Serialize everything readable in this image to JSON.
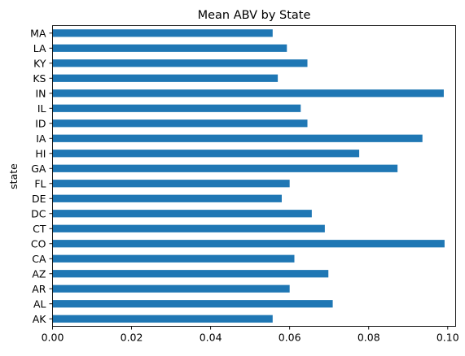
{
  "chart_data": {
    "type": "bar",
    "orientation": "horizontal",
    "title": "Mean ABV by State",
    "xlabel": "",
    "ylabel": "state",
    "xlim": [
      0,
      0.102
    ],
    "x_ticks": [
      "0.00",
      "0.02",
      "0.04",
      "0.06",
      "0.08",
      "0.10"
    ],
    "grid": false,
    "bar_color": "#1f77b4",
    "categories": [
      "AK",
      "AL",
      "AR",
      "AZ",
      "CA",
      "CO",
      "CT",
      "DC",
      "DE",
      "FL",
      "GA",
      "HI",
      "IA",
      "ID",
      "IL",
      "IN",
      "KS",
      "KY",
      "LA",
      "MA"
    ],
    "values": [
      0.0557,
      0.0709,
      0.06,
      0.0698,
      0.0612,
      0.0992,
      0.0689,
      0.0656,
      0.058,
      0.06,
      0.0873,
      0.0776,
      0.0936,
      0.0645,
      0.0628,
      0.099,
      0.057,
      0.0645,
      0.0593,
      0.0557
    ]
  }
}
